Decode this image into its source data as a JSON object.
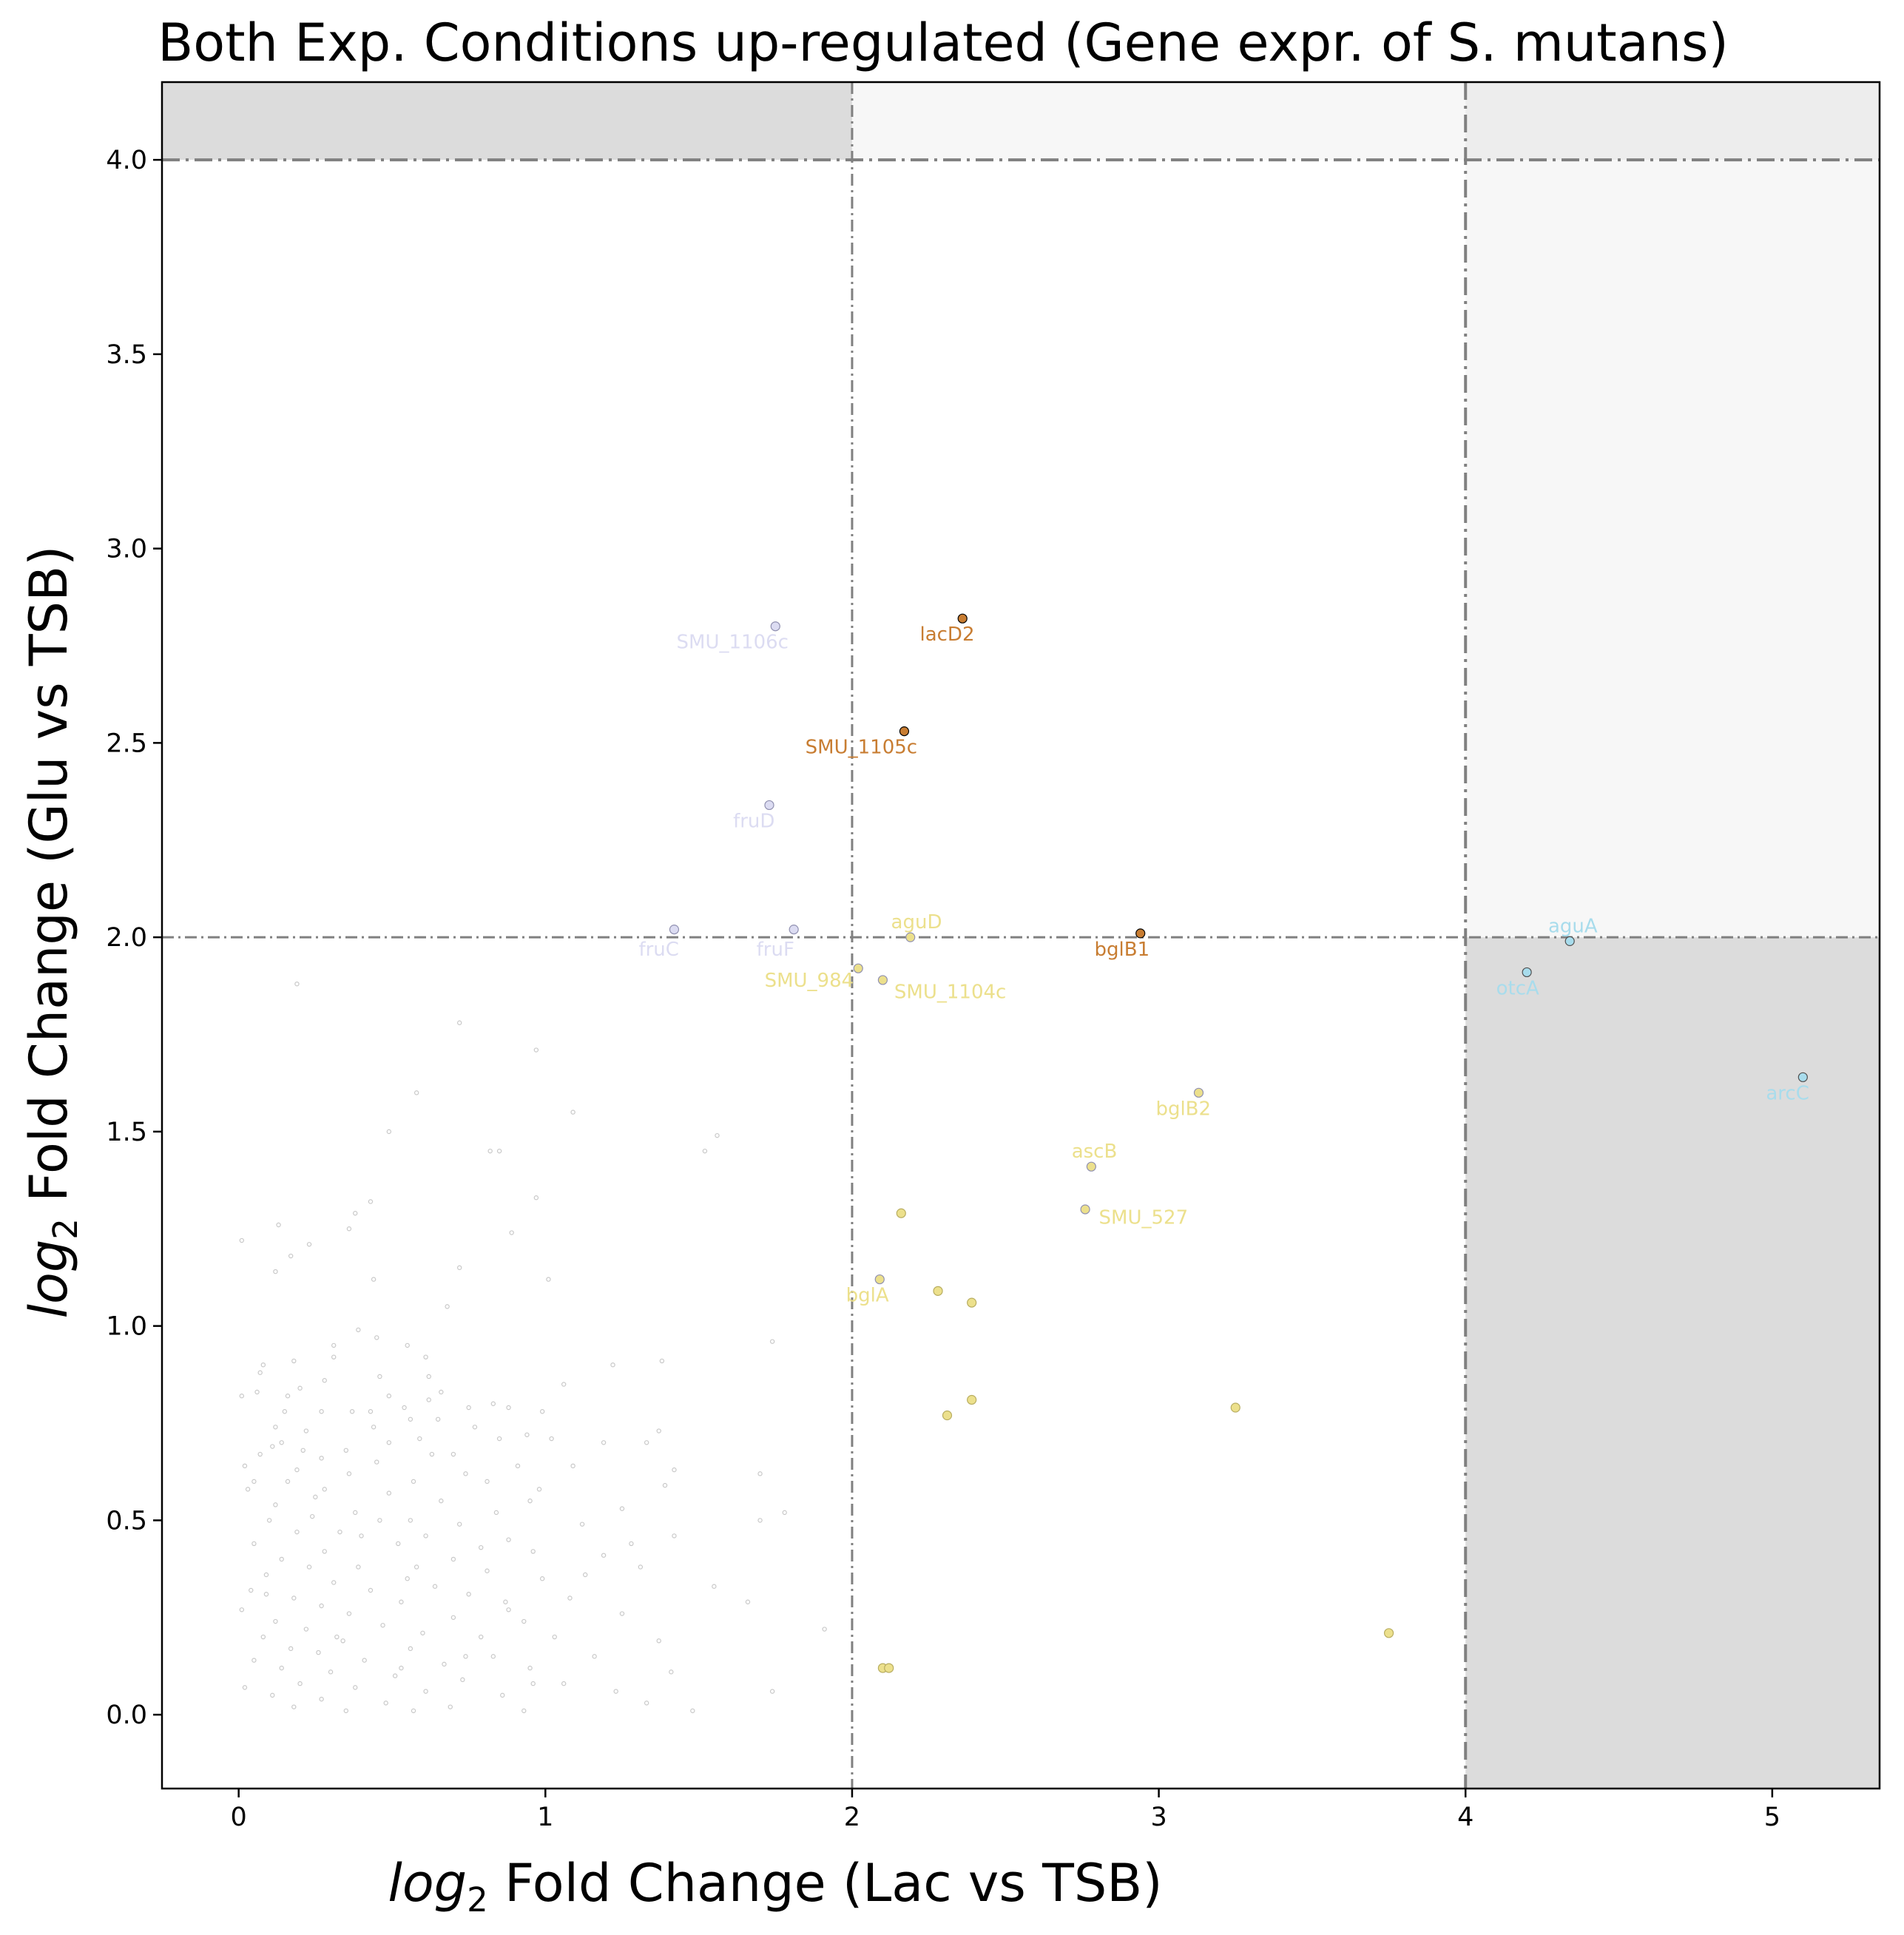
{
  "chart_data": {
    "type": "scatter",
    "title": "Both Exp. Conditions up-regulated (Gene expr. of S. mutans)",
    "xlabel_italic": "log",
    "xlabel_sub": "2",
    "xlabel_rest": " Fold Change (Lac vs TSB)",
    "ylabel_italic": "log",
    "ylabel_sub": "2",
    "ylabel_rest": " Fold Change (Glu vs TSB)",
    "xlim": [
      -0.25,
      5.35
    ],
    "ylim": [
      -0.19,
      4.2
    ],
    "x_ticks": [
      {
        "value": 0,
        "label": "0"
      },
      {
        "value": 1,
        "label": "1"
      },
      {
        "value": 2,
        "label": "2"
      },
      {
        "value": 3,
        "label": "3"
      },
      {
        "value": 4,
        "label": "4"
      },
      {
        "value": 5,
        "label": "5"
      }
    ],
    "y_ticks": [
      {
        "value": 0,
        "label": "0.0"
      },
      {
        "value": 0.5,
        "label": "0.5"
      },
      {
        "value": 1,
        "label": "1.0"
      },
      {
        "value": 1.5,
        "label": "1.5"
      },
      {
        "value": 2,
        "label": "2.0"
      },
      {
        "value": 2.5,
        "label": "2.5"
      },
      {
        "value": 3,
        "label": "3.0"
      },
      {
        "value": 3.5,
        "label": "3.5"
      },
      {
        "value": 4,
        "label": "4.0"
      }
    ],
    "grid": false,
    "shaded_regions": [
      {
        "x": [
          -0.25,
          2
        ],
        "y": [
          4,
          4.2
        ],
        "color": "#dcdcdc"
      },
      {
        "x": [
          2,
          4
        ],
        "y": [
          4,
          4.2
        ],
        "color": "#f7f7f7"
      },
      {
        "x": [
          4,
          5.35
        ],
        "y": [
          4,
          4.2
        ],
        "color": "#ededed"
      },
      {
        "x": [
          4,
          5.35
        ],
        "y": [
          2,
          4
        ],
        "color": "#f7f7f7"
      },
      {
        "x": [
          4,
          5.35
        ],
        "y": [
          -0.19,
          2
        ],
        "color": "#dcdcdc"
      }
    ],
    "threshold_lines": {
      "vertical": [
        {
          "x": 2,
          "color": "#808080",
          "style": "thin"
        },
        {
          "x": 4,
          "color": "#808080",
          "style": "thick"
        }
      ],
      "horizontal": [
        {
          "y": 2,
          "color": "#808080",
          "style": "thin"
        },
        {
          "y": 4,
          "color": "#808080",
          "style": "thick"
        }
      ]
    },
    "labeled_points": [
      {
        "label": "SMU_1106c",
        "x": 1.75,
        "y": 2.8,
        "color": "#dcdcf2"
      },
      {
        "label": "fruD",
        "x": 1.73,
        "y": 2.34,
        "color": "#dcdcf2"
      },
      {
        "label": "fruC",
        "x": 1.42,
        "y": 2.02,
        "color": "#dcdcf2"
      },
      {
        "label": "fruF",
        "x": 1.81,
        "y": 2.02,
        "color": "#dcdcf2"
      },
      {
        "label": "lacD2",
        "x": 2.36,
        "y": 2.82,
        "color": "#c87d32"
      },
      {
        "label": "SMU_1105c",
        "x": 2.17,
        "y": 2.53,
        "color": "#c87d32"
      },
      {
        "label": "bglB1",
        "x": 2.94,
        "y": 2.01,
        "color": "#c87d32"
      },
      {
        "label": "aguD",
        "x": 2.19,
        "y": 2.0,
        "color": "#ece08c"
      },
      {
        "label": "SMU_984",
        "x": 2.02,
        "y": 1.92,
        "color": "#ece08c"
      },
      {
        "label": "SMU_1104c",
        "x": 2.1,
        "y": 1.89,
        "color": "#ece08c"
      },
      {
        "label": "bglB2",
        "x": 3.13,
        "y": 1.6,
        "color": "#ece08c"
      },
      {
        "label": "ascB",
        "x": 2.78,
        "y": 1.41,
        "color": "#ece08c"
      },
      {
        "label": "SMU_527",
        "x": 2.76,
        "y": 1.3,
        "color": "#ece08c"
      },
      {
        "label": "bglA",
        "x": 2.09,
        "y": 1.12,
        "color": "#ece08c"
      },
      {
        "label": "aguA",
        "x": 4.34,
        "y": 1.99,
        "color": "#a8dcec"
      },
      {
        "label": "otcA",
        "x": 4.2,
        "y": 1.91,
        "color": "#a8dcec"
      },
      {
        "label": "arcC",
        "x": 5.1,
        "y": 1.64,
        "color": "#a8dcec"
      }
    ],
    "unlabeled_points": [
      {
        "x": 2.16,
        "y": 1.29
      },
      {
        "x": 2.28,
        "y": 1.09
      },
      {
        "x": 2.39,
        "y": 1.06
      },
      {
        "x": 2.39,
        "y": 0.81
      },
      {
        "x": 2.31,
        "y": 0.77
      },
      {
        "x": 3.25,
        "y": 0.79
      },
      {
        "x": 3.75,
        "y": 0.21
      },
      {
        "x": 2.1,
        "y": 0.12
      },
      {
        "x": 2.12,
        "y": 0.12
      }
    ],
    "background_points": [
      [
        0.19,
        1.88
      ],
      [
        0.72,
        1.78
      ],
      [
        0.97,
        1.71
      ],
      [
        0.58,
        1.6
      ],
      [
        1.09,
        1.55
      ],
      [
        1.56,
        1.49
      ],
      [
        1.52,
        1.45
      ],
      [
        0.82,
        1.45
      ],
      [
        0.85,
        1.45
      ],
      [
        0.49,
        1.5
      ],
      [
        0.97,
        1.33
      ],
      [
        0.43,
        1.32
      ],
      [
        0.38,
        1.29
      ],
      [
        0.13,
        1.26
      ],
      [
        0.36,
        1.25
      ],
      [
        0.89,
        1.24
      ],
      [
        0.01,
        1.22
      ],
      [
        0.23,
        1.21
      ],
      [
        0.17,
        1.18
      ],
      [
        0.72,
        1.15
      ],
      [
        0.12,
        1.14
      ],
      [
        1.01,
        1.12
      ],
      [
        0.44,
        1.12
      ],
      [
        0.68,
        1.05
      ],
      [
        0.39,
        0.99
      ],
      [
        0.45,
        0.97
      ],
      [
        0.31,
        0.95
      ],
      [
        1.74,
        0.96
      ],
      [
        0.55,
        0.95
      ],
      [
        0.31,
        0.92
      ],
      [
        1.38,
        0.91
      ],
      [
        0.61,
        0.92
      ],
      [
        0.18,
        0.91
      ],
      [
        0.08,
        0.9
      ],
      [
        0.07,
        0.88
      ],
      [
        1.22,
        0.9
      ],
      [
        0.46,
        0.87
      ],
      [
        0.28,
        0.86
      ],
      [
        1.06,
        0.85
      ],
      [
        0.2,
        0.84
      ],
      [
        0.06,
        0.83
      ],
      [
        0.66,
        0.83
      ],
      [
        0.01,
        0.82
      ],
      [
        0.49,
        0.82
      ],
      [
        0.16,
        0.82
      ],
      [
        0.83,
        0.8
      ],
      [
        0.62,
        0.81
      ],
      [
        0.75,
        0.79
      ],
      [
        0.54,
        0.79
      ],
      [
        0.88,
        0.79
      ],
      [
        0.37,
        0.78
      ],
      [
        0.27,
        0.78
      ],
      [
        0.43,
        0.78
      ],
      [
        0.99,
        0.78
      ],
      [
        0.56,
        0.76
      ],
      [
        0.65,
        0.76
      ],
      [
        0.12,
        0.74
      ],
      [
        0.77,
        0.74
      ],
      [
        0.22,
        0.73
      ],
      [
        0.94,
        0.72
      ],
      [
        1.37,
        0.73
      ],
      [
        0.14,
        0.7
      ],
      [
        0.49,
        0.7
      ],
      [
        0.59,
        0.71
      ],
      [
        1.19,
        0.7
      ],
      [
        0.85,
        0.71
      ],
      [
        0.11,
        0.69
      ],
      [
        0.35,
        0.68
      ],
      [
        1.33,
        0.7
      ],
      [
        0.63,
        0.67
      ],
      [
        0.07,
        0.67
      ],
      [
        0.27,
        0.66
      ],
      [
        0.19,
        0.63
      ],
      [
        0.02,
        0.64
      ],
      [
        0.45,
        0.65
      ],
      [
        0.91,
        0.64
      ],
      [
        1.09,
        0.64
      ],
      [
        0.74,
        0.62
      ],
      [
        0.36,
        0.62
      ],
      [
        1.7,
        0.62
      ],
      [
        1.42,
        0.63
      ],
      [
        0.16,
        0.6
      ],
      [
        0.57,
        0.6
      ],
      [
        0.81,
        0.6
      ],
      [
        0.28,
        0.58
      ],
      [
        0.49,
        0.57
      ],
      [
        0.03,
        0.58
      ],
      [
        1.39,
        0.59
      ],
      [
        0.66,
        0.55
      ],
      [
        0.95,
        0.55
      ],
      [
        0.12,
        0.54
      ],
      [
        0.38,
        0.52
      ],
      [
        1.25,
        0.53
      ],
      [
        0.84,
        0.52
      ],
      [
        0.24,
        0.51
      ],
      [
        0.56,
        0.5
      ],
      [
        1.7,
        0.5
      ],
      [
        1.78,
        0.52
      ],
      [
        0.1,
        0.5
      ],
      [
        0.46,
        0.5
      ],
      [
        0.72,
        0.49
      ],
      [
        1.12,
        0.49
      ],
      [
        0.33,
        0.47
      ],
      [
        0.19,
        0.47
      ],
      [
        0.61,
        0.46
      ],
      [
        0.88,
        0.45
      ],
      [
        1.42,
        0.46
      ],
      [
        0.05,
        0.44
      ],
      [
        0.52,
        0.44
      ],
      [
        0.28,
        0.42
      ],
      [
        0.96,
        0.42
      ],
      [
        0.14,
        0.4
      ],
      [
        1.19,
        0.41
      ],
      [
        0.7,
        0.4
      ],
      [
        0.39,
        0.38
      ],
      [
        0.23,
        0.38
      ],
      [
        0.81,
        0.37
      ],
      [
        1.31,
        0.38
      ],
      [
        0.09,
        0.36
      ],
      [
        0.55,
        0.35
      ],
      [
        0.99,
        0.35
      ],
      [
        0.31,
        0.34
      ],
      [
        0.64,
        0.33
      ],
      [
        1.55,
        0.33
      ],
      [
        0.04,
        0.32
      ],
      [
        0.43,
        0.32
      ],
      [
        0.75,
        0.31
      ],
      [
        0.18,
        0.3
      ],
      [
        1.08,
        0.3
      ],
      [
        0.87,
        0.29
      ],
      [
        0.53,
        0.29
      ],
      [
        1.66,
        0.29
      ],
      [
        0.27,
        0.28
      ],
      [
        0.01,
        0.27
      ],
      [
        0.36,
        0.26
      ],
      [
        0.7,
        0.25
      ],
      [
        1.25,
        0.26
      ],
      [
        0.12,
        0.24
      ],
      [
        0.93,
        0.24
      ],
      [
        0.47,
        0.23
      ],
      [
        0.22,
        0.22
      ],
      [
        1.91,
        0.22
      ],
      [
        0.6,
        0.21
      ],
      [
        0.79,
        0.2
      ],
      [
        0.08,
        0.2
      ],
      [
        1.03,
        0.2
      ],
      [
        0.34,
        0.19
      ],
      [
        1.37,
        0.19
      ],
      [
        0.17,
        0.17
      ],
      [
        0.56,
        0.17
      ],
      [
        0.26,
        0.16
      ],
      [
        0.83,
        0.15
      ],
      [
        1.16,
        0.15
      ],
      [
        0.41,
        0.14
      ],
      [
        0.05,
        0.14
      ],
      [
        0.67,
        0.13
      ],
      [
        0.14,
        0.12
      ],
      [
        0.95,
        0.12
      ],
      [
        0.3,
        0.11
      ],
      [
        1.41,
        0.11
      ],
      [
        0.51,
        0.1
      ],
      [
        0.73,
        0.09
      ],
      [
        0.2,
        0.08
      ],
      [
        1.06,
        0.08
      ],
      [
        0.02,
        0.07
      ],
      [
        0.38,
        0.07
      ],
      [
        0.61,
        0.06
      ],
      [
        1.23,
        0.06
      ],
      [
        0.11,
        0.05
      ],
      [
        0.86,
        0.05
      ],
      [
        1.74,
        0.06
      ],
      [
        0.27,
        0.04
      ],
      [
        0.48,
        0.03
      ],
      [
        1.33,
        0.03
      ],
      [
        0.18,
        0.02
      ],
      [
        0.69,
        0.02
      ],
      [
        0.93,
        0.01
      ],
      [
        0.35,
        0.01
      ],
      [
        1.48,
        0.01
      ],
      [
        0.57,
        0.01
      ],
      [
        0.09,
        0.31
      ],
      [
        0.25,
        0.56
      ],
      [
        0.44,
        0.74
      ],
      [
        0.62,
        0.87
      ],
      [
        0.79,
        0.43
      ],
      [
        0.98,
        0.58
      ],
      [
        1.13,
        0.36
      ],
      [
        0.32,
        0.2
      ],
      [
        0.7,
        0.67
      ],
      [
        0.15,
        0.78
      ],
      [
        0.53,
        0.12
      ],
      [
        0.88,
        0.27
      ],
      [
        1.28,
        0.44
      ],
      [
        0.05,
        0.6
      ],
      [
        0.4,
        0.46
      ],
      [
        0.74,
        0.15
      ],
      [
        1.02,
        0.71
      ],
      [
        0.21,
        0.68
      ],
      [
        0.58,
        0.38
      ],
      [
        0.96,
        0.08
      ]
    ]
  }
}
